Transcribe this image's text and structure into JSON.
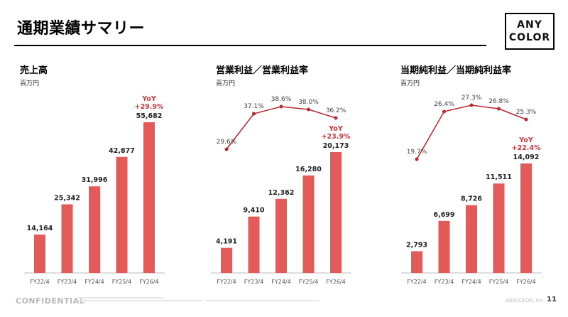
{
  "page": {
    "title": "通期業績サマリー",
    "logo_line1": "ANY",
    "logo_line2": "COLOR",
    "footer_confidential": "CONFIDENTIAL",
    "footer_company": "ANYCOLOR, Inc.",
    "page_number": "11"
  },
  "colors": {
    "bar": "#e35a5a",
    "line": "#b8282e",
    "yoy": "#c9363d",
    "axis": "#bbbbbb"
  },
  "chart_data": [
    {
      "type": "bar",
      "title": "売上高",
      "ylabel": "百万円",
      "categories": [
        "FY22/4",
        "FY23/4",
        "FY24/4",
        "FY25/4",
        "FY26/4"
      ],
      "series": [
        {
          "values": [
            14164,
            25342,
            31996,
            42877,
            55682
          ]
        }
      ],
      "value_labels": [
        "14,164",
        "25,342",
        "31,996",
        "42,877",
        "55,682"
      ],
      "yoy_label": "YoY",
      "yoy_value": "+29.9%",
      "ylim": [
        0,
        62000
      ],
      "grid": false
    },
    {
      "type": "bar",
      "title": "営業利益／営業利益率",
      "ylabel": "百万円",
      "categories": [
        "FY22/4",
        "FY23/4",
        "FY24/4",
        "FY25/4",
        "FY26/4"
      ],
      "series": [
        {
          "values": [
            4191,
            9410,
            12362,
            16280,
            20173
          ]
        }
      ],
      "value_labels": [
        "4,191",
        "9,410",
        "12,362",
        "16,280",
        "20,173"
      ],
      "line_values": [
        29.6,
        37.1,
        38.6,
        38.0,
        36.2
      ],
      "line_labels": [
        "29.6%",
        "37.1%",
        "38.6%",
        "38.0%",
        "36.2%"
      ],
      "yoy_label": "YoY",
      "yoy_value": "+23.9%",
      "ylim": [
        0,
        30000
      ],
      "grid": false
    },
    {
      "type": "bar",
      "title": "当期純利益／当期純利益率",
      "ylabel": "百万円",
      "categories": [
        "FY22/4",
        "FY23/4",
        "FY24/4",
        "FY25/4",
        "FY26/4"
      ],
      "series": [
        {
          "values": [
            2793,
            6699,
            8726,
            11511,
            14092
          ]
        }
      ],
      "value_labels": [
        "2,793",
        "6,699",
        "8,726",
        "11,511",
        "14,092"
      ],
      "line_values": [
        19.7,
        26.4,
        27.3,
        26.8,
        25.3
      ],
      "line_labels": [
        "19.7%",
        "26.4%",
        "27.3%",
        "26.8%",
        "25.3%"
      ],
      "yoy_label": "YoY",
      "yoy_value": "+22.4%",
      "ylim": [
        0,
        20000
      ],
      "grid": false
    }
  ]
}
